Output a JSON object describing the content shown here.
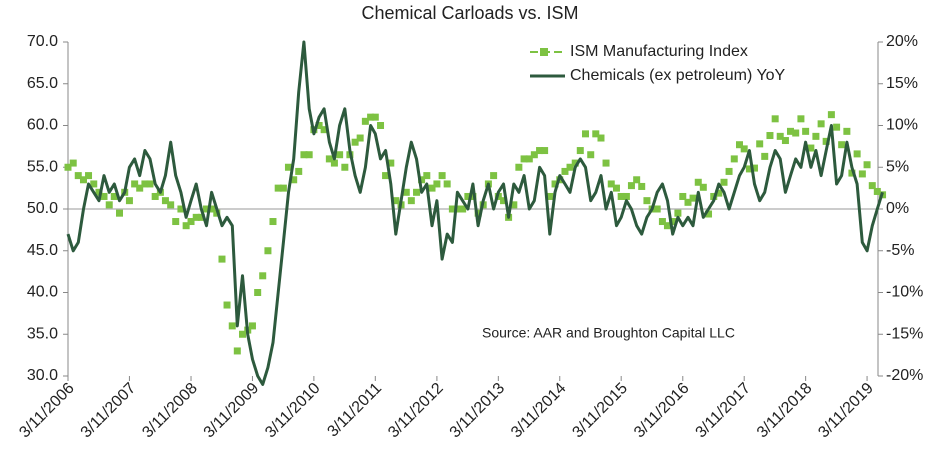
{
  "chart_data": {
    "type": "line",
    "title": "Chemical Carloads vs. ISM",
    "annotation": "Source: AAR and Broughton Capital LLC",
    "x": [
      "2006-03-11",
      "2006-04-11",
      "2006-05-11",
      "2006-06-11",
      "2006-07-11",
      "2006-08-11",
      "2006-09-11",
      "2006-10-11",
      "2006-11-11",
      "2006-12-11",
      "2007-01-11",
      "2007-02-11",
      "2007-03-11",
      "2007-04-11",
      "2007-05-11",
      "2007-06-11",
      "2007-07-11",
      "2007-08-11",
      "2007-09-11",
      "2007-10-11",
      "2007-11-11",
      "2007-12-11",
      "2008-01-11",
      "2008-02-11",
      "2008-03-11",
      "2008-04-11",
      "2008-05-11",
      "2008-06-11",
      "2008-07-11",
      "2008-08-11",
      "2008-09-11",
      "2008-10-11",
      "2008-11-11",
      "2008-12-11",
      "2009-01-11",
      "2009-02-11",
      "2009-03-11",
      "2009-04-11",
      "2009-05-11",
      "2009-06-11",
      "2009-07-11",
      "2009-08-11",
      "2009-09-11",
      "2009-10-11",
      "2009-11-11",
      "2009-12-11",
      "2010-01-11",
      "2010-02-11",
      "2010-03-11",
      "2010-04-11",
      "2010-05-11",
      "2010-06-11",
      "2010-07-11",
      "2010-08-11",
      "2010-09-11",
      "2010-10-11",
      "2010-11-11",
      "2010-12-11",
      "2011-01-11",
      "2011-02-11",
      "2011-03-11",
      "2011-04-11",
      "2011-05-11",
      "2011-06-11",
      "2011-07-11",
      "2011-08-11",
      "2011-09-11",
      "2011-10-11",
      "2011-11-11",
      "2011-12-11",
      "2012-01-11",
      "2012-02-11",
      "2012-03-11",
      "2012-04-11",
      "2012-05-11",
      "2012-06-11",
      "2012-07-11",
      "2012-08-11",
      "2012-09-11",
      "2012-10-11",
      "2012-11-11",
      "2012-12-11",
      "2013-01-11",
      "2013-02-11",
      "2013-03-11",
      "2013-04-11",
      "2013-05-11",
      "2013-06-11",
      "2013-07-11",
      "2013-08-11",
      "2013-09-11",
      "2013-10-11",
      "2013-11-11",
      "2013-12-11",
      "2014-01-11",
      "2014-02-11",
      "2014-03-11",
      "2014-04-11",
      "2014-05-11",
      "2014-06-11",
      "2014-07-11",
      "2014-08-11",
      "2014-09-11",
      "2014-10-11",
      "2014-11-11",
      "2014-12-11",
      "2015-01-11",
      "2015-02-11",
      "2015-03-11",
      "2015-04-11",
      "2015-05-11",
      "2015-06-11",
      "2015-07-11",
      "2015-08-11",
      "2015-09-11",
      "2015-10-11",
      "2015-11-11",
      "2015-12-11",
      "2016-01-11",
      "2016-02-11",
      "2016-03-11",
      "2016-04-11",
      "2016-05-11",
      "2016-06-11",
      "2016-07-11",
      "2016-08-11",
      "2016-09-11",
      "2016-10-11",
      "2016-11-11",
      "2016-12-11",
      "2017-01-11",
      "2017-02-11",
      "2017-03-11",
      "2017-04-11",
      "2017-05-11",
      "2017-06-11",
      "2017-07-11",
      "2017-08-11",
      "2017-09-11",
      "2017-10-11",
      "2017-11-11",
      "2017-12-11",
      "2018-01-11",
      "2018-02-11",
      "2018-03-11",
      "2018-04-11",
      "2018-05-11",
      "2018-06-11",
      "2018-07-11",
      "2018-08-11",
      "2018-09-11",
      "2018-10-11",
      "2018-11-11",
      "2018-12-11",
      "2019-01-11",
      "2019-02-11",
      "2019-03-11",
      "2019-04-11",
      "2019-05-11",
      "2019-06-11"
    ],
    "series": [
      {
        "name": "ISM Manufacturing Index",
        "color": "#7dc242",
        "marker": "square",
        "axis": "y",
        "values": [
          55,
          55.5,
          54,
          53.5,
          54,
          53,
          52,
          51.5,
          50.5,
          51.5,
          49.5,
          52,
          51,
          53,
          52.5,
          53,
          53,
          51.5,
          52,
          51,
          50.5,
          48.5,
          50,
          48,
          48.5,
          49,
          49,
          50,
          50,
          49.5,
          44,
          38.5,
          36,
          33,
          35,
          35.5,
          36,
          40,
          42,
          45,
          48.5,
          52.5,
          52.5,
          55,
          53.5,
          54.5,
          56.5,
          56.5,
          59.5,
          60,
          59.5,
          56,
          55.5,
          56.5,
          55,
          56.5,
          58,
          58.5,
          60.5,
          61,
          61,
          60,
          54,
          55.5,
          51,
          50.5,
          52,
          51,
          52,
          53.5,
          54,
          52.5,
          53,
          54,
          53,
          50,
          50,
          50,
          51.5,
          51.5,
          49.5,
          50.5,
          53,
          54,
          51.5,
          51,
          49,
          50.5,
          55,
          56,
          56,
          56.5,
          57,
          57,
          51.5,
          53,
          53.5,
          54.5,
          55,
          55.5,
          57,
          59,
          56.5,
          59,
          58.5,
          55.5,
          53,
          52.5,
          51.5,
          51.5,
          52.8,
          53.5,
          52.7,
          51,
          50,
          50,
          48.5,
          48,
          48.5,
          49.5,
          51.5,
          50.8,
          51.3,
          53.2,
          52.6,
          49.4,
          51.5,
          51.9,
          53.2,
          54.5,
          56,
          57.7,
          57.2,
          54.8,
          54.9,
          57.8,
          56.3,
          58.8,
          60.8,
          58.7,
          58.2,
          59.3,
          59.1,
          60.8,
          59.3,
          57.3,
          58.7,
          60.2,
          58.1,
          61.3,
          59.8,
          57.7,
          59.3,
          54.3,
          56.6,
          54.2,
          55.3,
          52.8,
          52.1,
          51.7
        ]
      },
      {
        "name": "Chemicals (ex petroleum) YoY",
        "color": "#2d5a3d",
        "marker": "line",
        "axis": "y2",
        "values": [
          -3,
          -5,
          -4,
          0,
          3,
          2,
          1,
          4,
          2,
          3,
          1,
          2,
          5,
          6,
          4,
          7,
          6,
          3,
          2,
          4,
          8,
          4,
          2,
          -1,
          1,
          3,
          0,
          -2,
          2,
          0,
          -2,
          -1,
          -2,
          -14,
          -8,
          -15,
          -18,
          -20,
          -21,
          -19,
          -16,
          -10,
          -4,
          2,
          6,
          14,
          20,
          12,
          9,
          11,
          12,
          8,
          6,
          10,
          12,
          7,
          4,
          2,
          5,
          10,
          9,
          6,
          7,
          3,
          -3,
          1,
          5,
          8,
          6,
          2,
          3,
          -2,
          1,
          -6,
          -3,
          -4,
          2,
          1,
          0,
          3,
          -2,
          1,
          3,
          0,
          2,
          3,
          -1,
          3,
          2,
          4,
          0,
          1,
          5,
          4,
          -3,
          2,
          4,
          3,
          2,
          5,
          6,
          5,
          1,
          2,
          4,
          0,
          2,
          -2,
          -1,
          1,
          0,
          -2,
          -3,
          -1,
          0,
          2,
          3,
          1,
          -3,
          -1,
          -2,
          -1,
          -2,
          2,
          -1,
          0,
          1,
          3,
          2,
          0,
          2,
          4,
          5,
          7,
          3,
          1,
          2,
          5,
          7,
          6,
          2,
          4,
          6,
          5,
          8,
          5,
          7,
          4,
          7,
          10,
          3,
          4,
          8,
          5,
          3,
          -4,
          -5,
          -2,
          0,
          2
        ]
      }
    ],
    "xlim": [
      "2006-03-11",
      "2019-05-15"
    ],
    "xticks": [
      {
        "value": "2006-03-11",
        "label": "3/11/2006"
      },
      {
        "value": "2007-03-11",
        "label": "3/11/2007"
      },
      {
        "value": "2008-03-11",
        "label": "3/11/2008"
      },
      {
        "value": "2009-03-11",
        "label": "3/11/2009"
      },
      {
        "value": "2010-03-11",
        "label": "3/11/2010"
      },
      {
        "value": "2011-03-11",
        "label": "3/11/2011"
      },
      {
        "value": "2012-03-11",
        "label": "3/11/2012"
      },
      {
        "value": "2013-03-11",
        "label": "3/11/2013"
      },
      {
        "value": "2014-03-11",
        "label": "3/11/2014"
      },
      {
        "value": "2015-03-11",
        "label": "3/11/2015"
      },
      {
        "value": "2016-03-11",
        "label": "3/11/2016"
      },
      {
        "value": "2017-03-11",
        "label": "3/11/2017"
      },
      {
        "value": "2018-03-11",
        "label": "3/11/2018"
      },
      {
        "value": "2019-03-11",
        "label": "3/11/2019"
      }
    ],
    "ylim": [
      30,
      70
    ],
    "yticks": [
      {
        "value": 30,
        "label": "30.0"
      },
      {
        "value": 35,
        "label": "35.0"
      },
      {
        "value": 40,
        "label": "40.0"
      },
      {
        "value": 45,
        "label": "45.0"
      },
      {
        "value": 50,
        "label": "50.0"
      },
      {
        "value": 55,
        "label": "55.0"
      },
      {
        "value": 60,
        "label": "60.0"
      },
      {
        "value": 65,
        "label": "65.0"
      },
      {
        "value": 70,
        "label": "70.0"
      }
    ],
    "y2lim": [
      -20,
      20
    ],
    "y2ticks": [
      {
        "value": -20,
        "label": "-20%"
      },
      {
        "value": -15,
        "label": "-15%"
      },
      {
        "value": -10,
        "label": "-10%"
      },
      {
        "value": -5,
        "label": "-5%"
      },
      {
        "value": 0,
        "label": "0%"
      },
      {
        "value": 5,
        "label": "5%"
      },
      {
        "value": 10,
        "label": "10%"
      },
      {
        "value": 15,
        "label": "15%"
      },
      {
        "value": 20,
        "label": "20%"
      }
    ],
    "reference_line": 50
  }
}
